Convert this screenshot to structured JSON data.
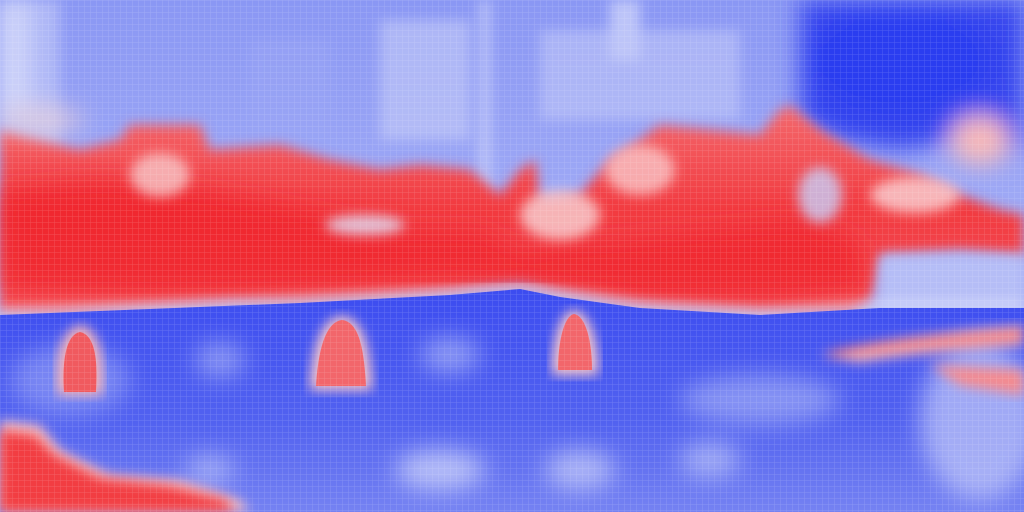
{
  "image": {
    "kind": "diverging-color-heatmap-photo",
    "palette": {
      "low": "#2a3cf0",
      "mid": "#ffffff",
      "high": "#f01e28"
    },
    "regions": [
      {
        "name": "sky",
        "level": "low"
      },
      {
        "name": "upper-right-sky",
        "level": "very-low"
      },
      {
        "name": "buildings-band",
        "level": "high"
      },
      {
        "name": "water",
        "level": "very-low"
      },
      {
        "name": "left-post",
        "level": "high"
      },
      {
        "name": "center-post",
        "level": "high"
      },
      {
        "name": "right-post",
        "level": "high"
      },
      {
        "name": "bottom-left-shore",
        "level": "high"
      },
      {
        "name": "right-sandbar",
        "level": "high"
      }
    ]
  }
}
